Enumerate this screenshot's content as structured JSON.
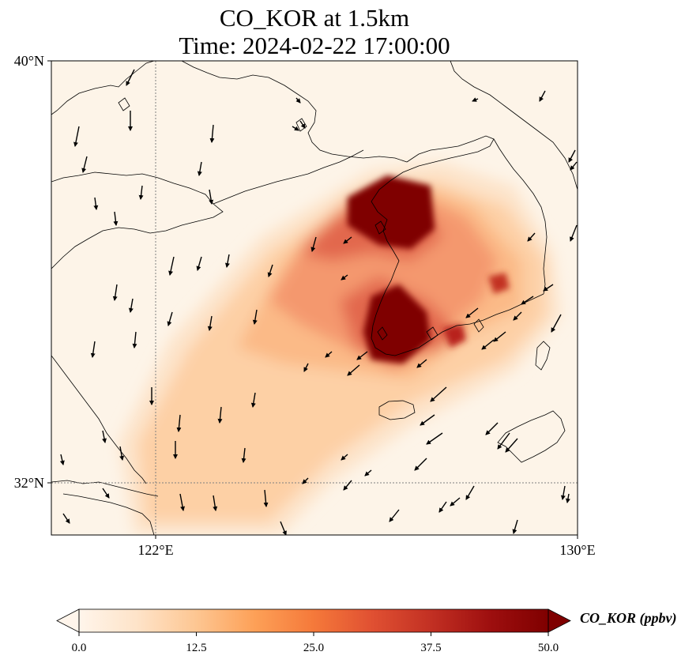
{
  "title": {
    "line1": "CO_KOR at 1.5km",
    "line2": "Time: 2024-02-22 17:00:00"
  },
  "map": {
    "lon_range": [
      118,
      130
    ],
    "lat_range": [
      30.8,
      40
    ],
    "lat_ticks": [
      {
        "value": 40,
        "label": "40°N"
      },
      {
        "value": 32,
        "label": "32°N"
      }
    ],
    "lon_ticks": [
      {
        "value": 122,
        "label": "122°E"
      },
      {
        "value": 130,
        "label": "130°E"
      }
    ],
    "gridlines": {
      "lon": [
        122
      ],
      "lat": [
        32
      ]
    },
    "background_color": "#fdf4e8"
  },
  "colorbar": {
    "label": "CO_KOR (ppbv)",
    "ticks": [
      "0.0",
      "12.5",
      "25.0",
      "37.5",
      "50.0"
    ],
    "min": 0,
    "max": 50,
    "extend": "both",
    "colors": [
      "#fff5eb",
      "#fee3c8",
      "#fdc692",
      "#fda057",
      "#f5793a",
      "#e05032",
      "#c23023",
      "#9e0f0f",
      "#7f0000"
    ]
  }
}
